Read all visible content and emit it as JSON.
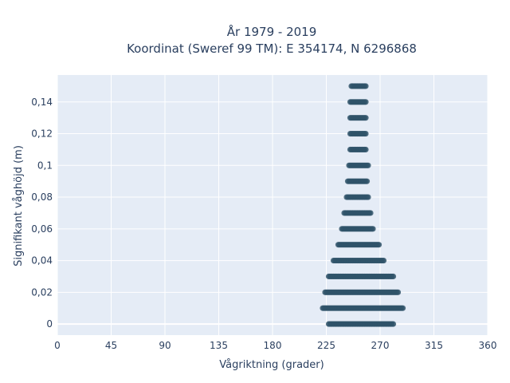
{
  "chart_data": {
    "type": "scatter",
    "title": "År 1979 - 2019",
    "subtitle": "Koordinat (Sweref 99 TM): E 354174, N 6296868",
    "xlabel": "Vågriktning (grader)",
    "ylabel": "Signifikant våghöjd (m)",
    "xlim": [
      0,
      360
    ],
    "ylim": [
      -0.007,
      0.157
    ],
    "xticks": [
      0,
      45,
      90,
      135,
      180,
      225,
      270,
      315,
      360
    ],
    "xtick_labels": [
      "0",
      "45",
      "90",
      "135",
      "180",
      "225",
      "270",
      "315",
      "360"
    ],
    "yticks": [
      0,
      0.02,
      0.04,
      0.06,
      0.08,
      0.1,
      0.12,
      0.14
    ],
    "ytick_labels": [
      "0",
      "0,02",
      "0,04",
      "0,06",
      "0,08",
      "0,1",
      "0,12",
      "0,14"
    ],
    "grid": true,
    "colors": {
      "background": "#e5ecf6",
      "grid": "#ffffff",
      "marker": "#2f5369",
      "text": "#2a3f5f"
    },
    "series": [
      {
        "points_summary": "direction range [min, max] in degrees for each wave-height level",
        "bands": [
          {
            "y": 0.0,
            "x_min": 227,
            "x_max": 281
          },
          {
            "y": 0.01,
            "x_min": 222,
            "x_max": 289
          },
          {
            "y": 0.02,
            "x_min": 224,
            "x_max": 285
          },
          {
            "y": 0.03,
            "x_min": 227,
            "x_max": 281
          },
          {
            "y": 0.04,
            "x_min": 231,
            "x_max": 273
          },
          {
            "y": 0.05,
            "x_min": 235,
            "x_max": 269
          },
          {
            "y": 0.06,
            "x_min": 238,
            "x_max": 264
          },
          {
            "y": 0.07,
            "x_min": 240,
            "x_max": 262
          },
          {
            "y": 0.08,
            "x_min": 242,
            "x_max": 260
          },
          {
            "y": 0.09,
            "x_min": 243,
            "x_max": 259
          },
          {
            "y": 0.1,
            "x_min": 244,
            "x_max": 260
          },
          {
            "y": 0.11,
            "x_min": 245,
            "x_max": 258
          },
          {
            "y": 0.12,
            "x_min": 245,
            "x_max": 258
          },
          {
            "y": 0.13,
            "x_min": 245,
            "x_max": 258
          },
          {
            "y": 0.14,
            "x_min": 245,
            "x_max": 258
          },
          {
            "y": 0.15,
            "x_min": 246,
            "x_max": 258
          }
        ]
      }
    ]
  }
}
